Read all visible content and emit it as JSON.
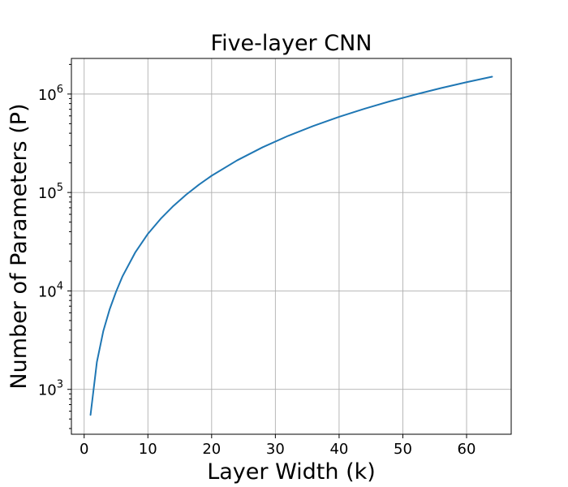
{
  "chart_data": {
    "type": "line",
    "title": "Five-layer CNN",
    "xlabel": "Layer Width (k)",
    "ylabel": "Number of Parameters (P)",
    "xlim": [
      -2,
      67
    ],
    "ylim": [
      350,
      2300000
    ],
    "yscale": "log",
    "grid": true,
    "legend": "none",
    "x_ticks": [
      0,
      10,
      20,
      30,
      40,
      50,
      60
    ],
    "x_tick_labels": [
      "0",
      "10",
      "20",
      "30",
      "40",
      "50",
      "60"
    ],
    "y_ticks": [
      1000,
      10000,
      100000,
      1000000
    ],
    "y_tick_labels": [
      {
        "base": "10",
        "exp": "3"
      },
      {
        "base": "10",
        "exp": "4"
      },
      {
        "base": "10",
        "exp": "5"
      },
      {
        "base": "10",
        "exp": "6"
      }
    ],
    "series": [
      {
        "color": "#1f77b4",
        "x": [
          1,
          2,
          3,
          4,
          5,
          6,
          8,
          10,
          12,
          14,
          16,
          18,
          20,
          24,
          28,
          32,
          36,
          40,
          44,
          48,
          52,
          56,
          60,
          64
        ],
        "y": [
          550,
          1900,
          3900,
          6500,
          9800,
          14000,
          24500,
          38000,
          54000,
          73000,
          95000,
          120000,
          148000,
          212000,
          288000,
          376000,
          475000,
          587000,
          710000,
          845000,
          990000,
          1150000,
          1320000,
          1500000
        ]
      }
    ]
  }
}
